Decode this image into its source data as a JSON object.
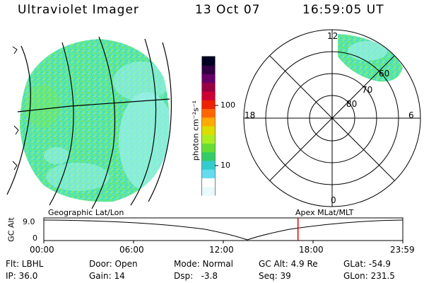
{
  "header": {
    "instrument": "Ultraviolet Imager",
    "date": "13 Oct 07",
    "time": "16:59:05 UT"
  },
  "image": {
    "primary_color": "#44e0c0",
    "secondary_color": "#66e066",
    "highlight_color": "#9af0ea"
  },
  "colorbar": {
    "unit_label": "photon cm⁻²s⁻¹",
    "tick_100": "100",
    "tick_10": "10",
    "colors": [
      "#eafafa",
      "#ffffff",
      "#66ddee",
      "#33cccc",
      "#33cc66",
      "#66dd33",
      "#aaee22",
      "#dddd00",
      "#ffaa00",
      "#ff6600",
      "#ee2200",
      "#cc0033",
      "#990044",
      "#660066",
      "#330044",
      "#000022"
    ]
  },
  "polar": {
    "top_label": "12",
    "left_label": "18",
    "right_label": "6",
    "bottom_label": "0",
    "ring_labels": [
      "60",
      "70",
      "80"
    ]
  },
  "timeline": {
    "axis_label": "GC Alt",
    "y_value": "9.0",
    "y_zero": "0",
    "left_caption": "Geographic Lat/Lon",
    "right_caption": "Apex MLat/MLT",
    "ticks": [
      "00:00",
      "06:00",
      "12:00",
      "18:00",
      "23:59"
    ],
    "marker_fraction": 0.708,
    "marker_color": "#dd0000"
  },
  "footer": {
    "filter": "Flt: LBHL",
    "door": "Door: Open",
    "mode": "Mode: Normal",
    "gc_alt": "GC Alt: 4.9 Re",
    "glat": "GLat: -54.9",
    "ip": "IP: 36.0",
    "gain": "Gain: 14",
    "dsp": "Dsp:   -3.8",
    "seq": "Seq: 39",
    "glon": "GLon: 231.5"
  }
}
